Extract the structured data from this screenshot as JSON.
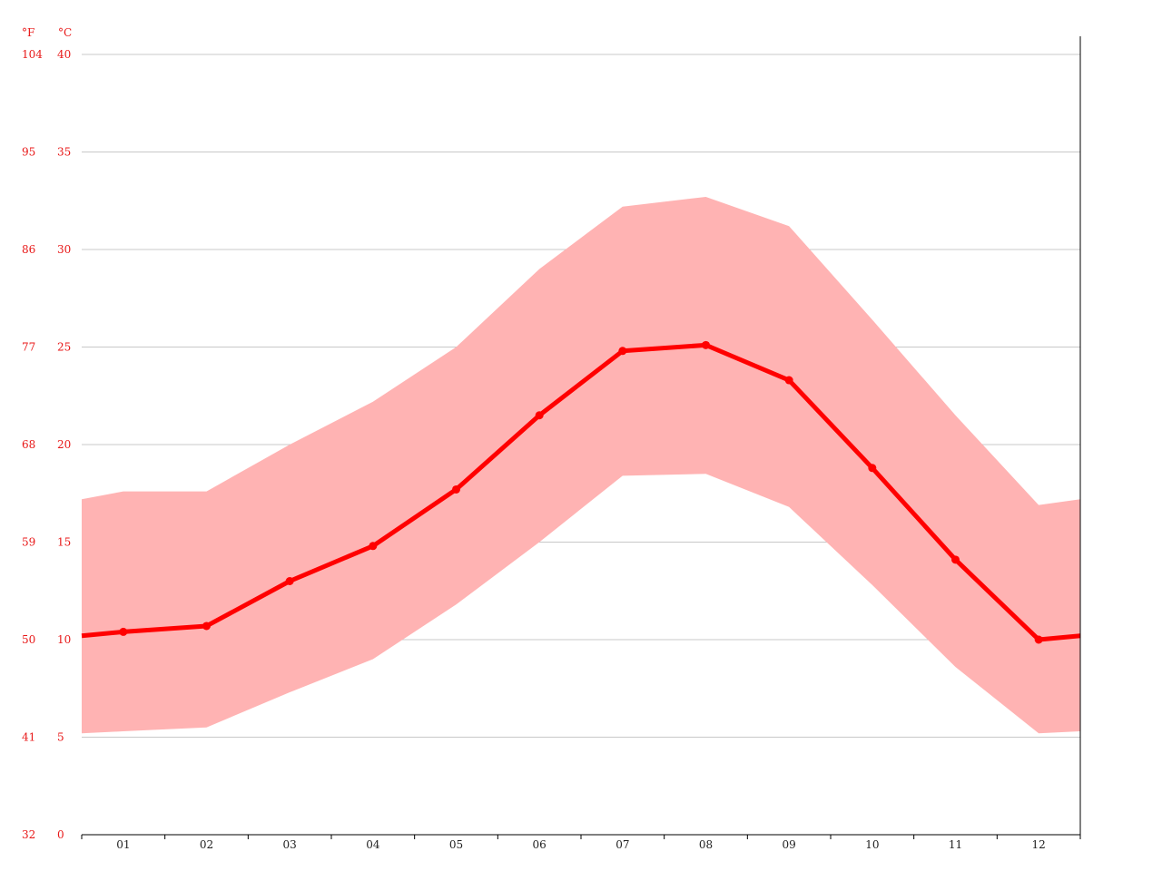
{
  "chart_data": {
    "type": "line",
    "units": {
      "fahrenheit": "°F",
      "celsius": "°C"
    },
    "categories": [
      "01",
      "02",
      "03",
      "04",
      "05",
      "06",
      "07",
      "08",
      "09",
      "10",
      "11",
      "12"
    ],
    "y_ticks_celsius": [
      "0",
      "5",
      "10",
      "15",
      "20",
      "25",
      "30",
      "35",
      "40"
    ],
    "y_ticks_fahrenheit": [
      "32",
      "41",
      "50",
      "59",
      "68",
      "77",
      "86",
      "95",
      "104"
    ],
    "ylim": [
      0,
      40
    ],
    "grid": true,
    "series": [
      {
        "role": "mean",
        "values": [
          10.4,
          10.7,
          13.0,
          14.8,
          17.7,
          21.5,
          24.8,
          25.1,
          23.3,
          18.8,
          14.1,
          10.0
        ]
      },
      {
        "role": "max",
        "values": [
          17.6,
          17.6,
          20.0,
          22.2,
          25.0,
          29.0,
          32.2,
          32.7,
          31.2,
          26.4,
          21.5,
          16.9
        ]
      },
      {
        "role": "min",
        "values": [
          5.3,
          5.5,
          7.3,
          9.0,
          11.8,
          15.0,
          18.4,
          18.5,
          16.8,
          12.8,
          8.6,
          5.2
        ]
      }
    ],
    "edge_values": {
      "mean": {
        "start": 10.2,
        "end": 10.2
      },
      "max": {
        "start": 17.2,
        "end": 17.2
      },
      "min": {
        "start": 5.2,
        "end": 5.3
      }
    },
    "colors": {
      "line": "#ff0000",
      "band": "#ffb3b3",
      "labels": "#e81818"
    }
  }
}
